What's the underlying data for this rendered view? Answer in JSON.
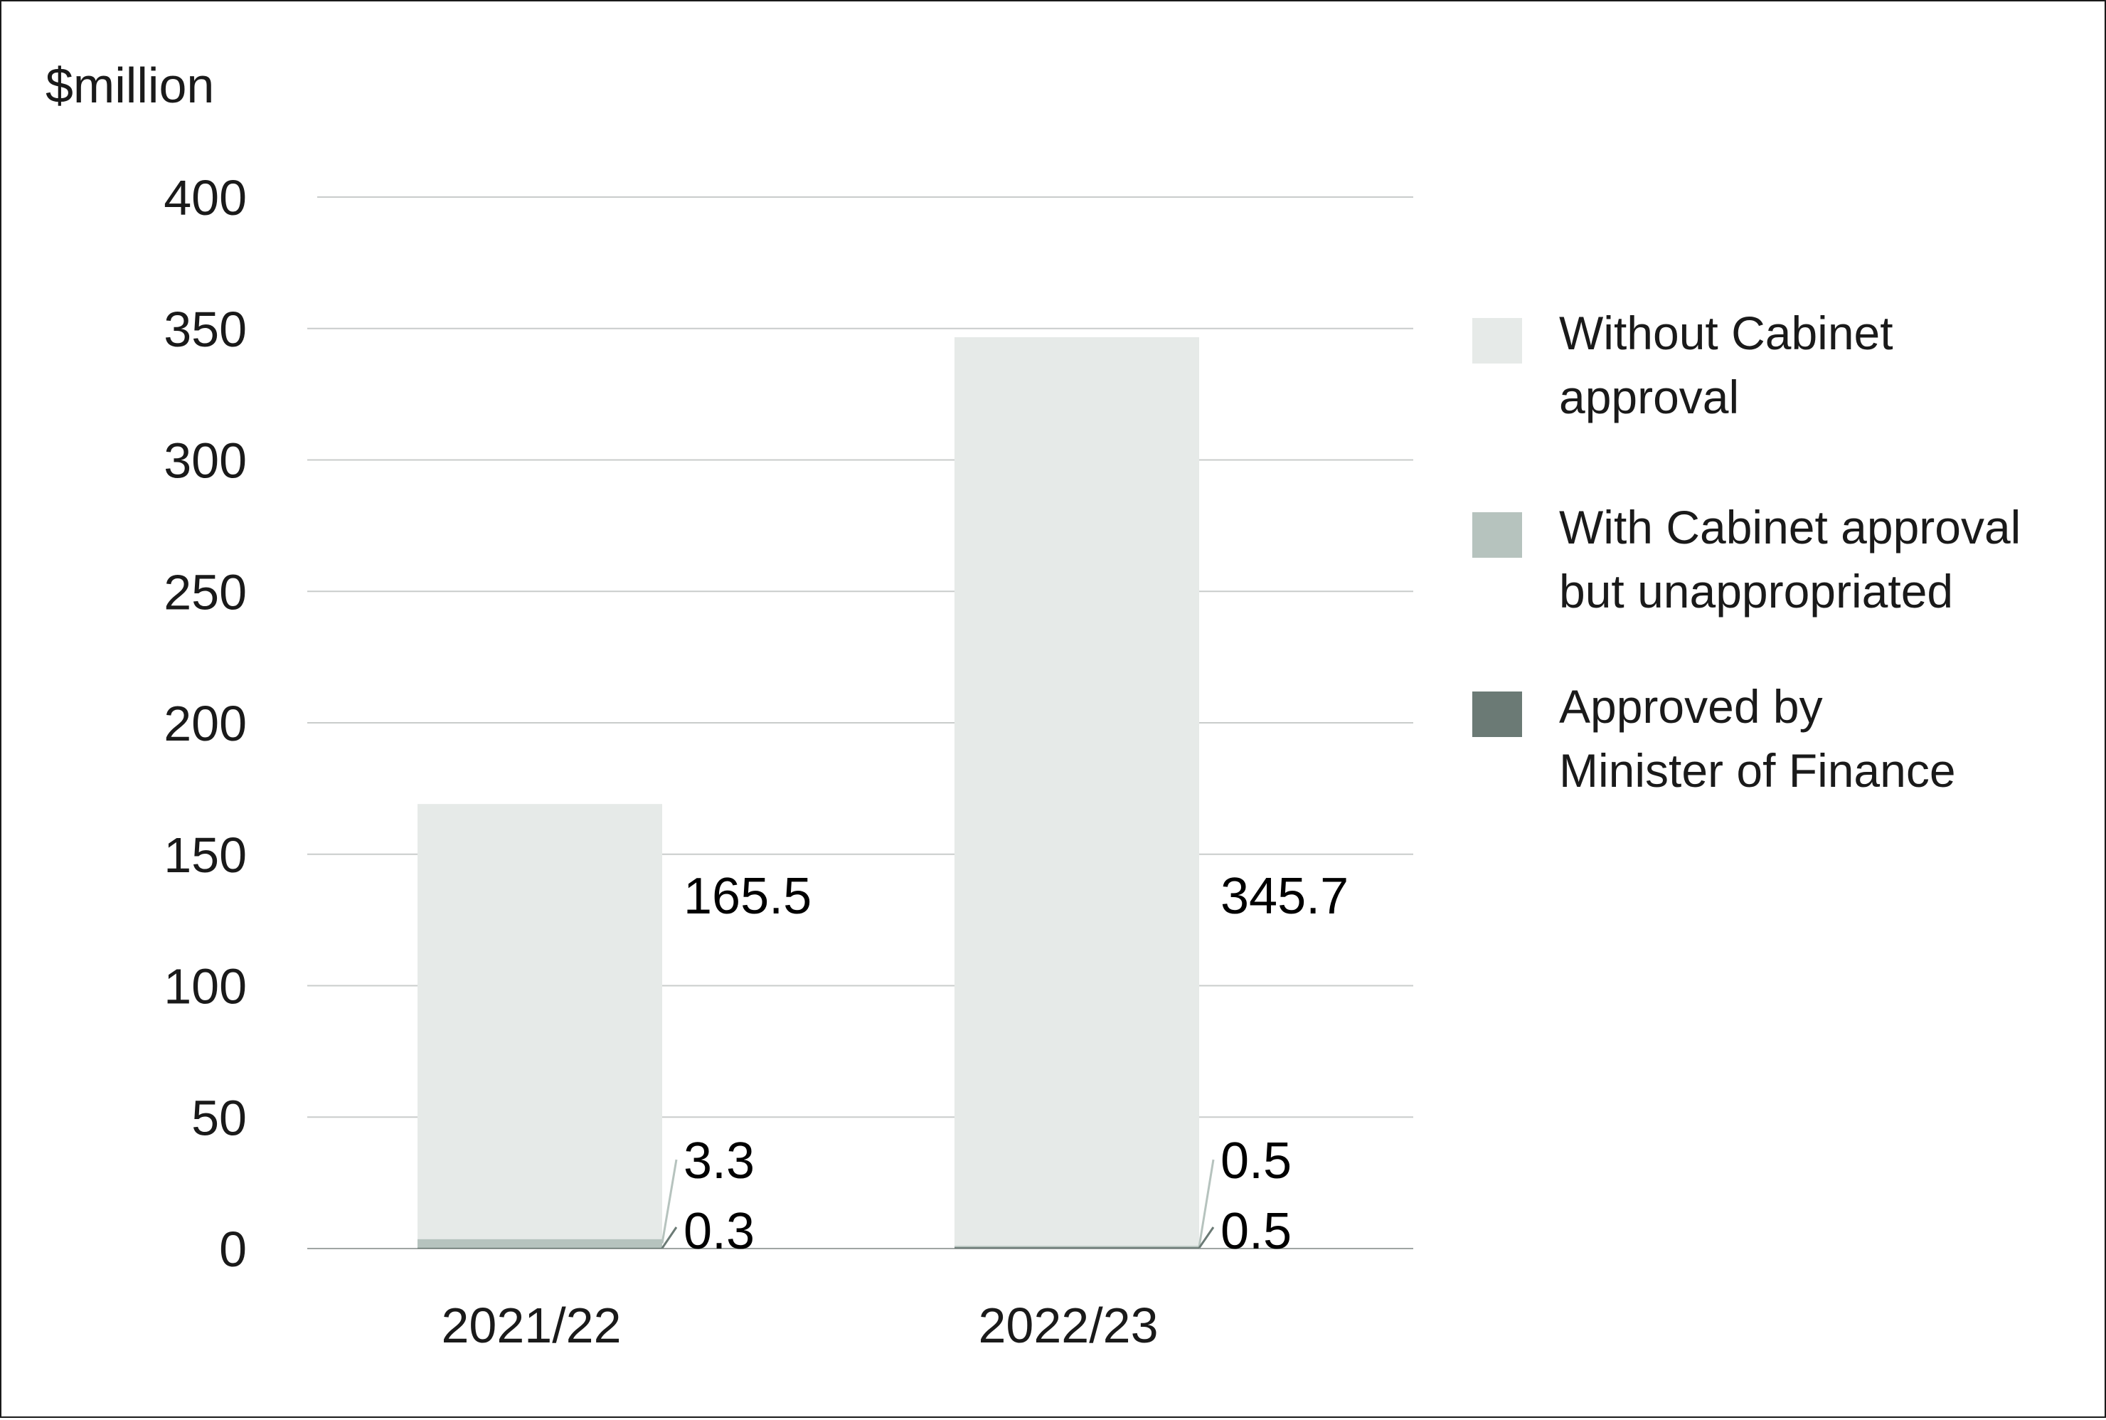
{
  "chart_data": {
    "type": "bar",
    "stacked": true,
    "ylabel": "$million",
    "categories": [
      "2021/22",
      "2022/23"
    ],
    "ylim": [
      0,
      400
    ],
    "yticks": [
      0,
      50,
      100,
      150,
      200,
      250,
      300,
      350,
      400
    ],
    "grid": true,
    "legend_position": "right",
    "series": [
      {
        "name": "Approved by Minister of Finance",
        "values": [
          0.3,
          0.5
        ],
        "labels": [
          "0.3",
          "0.5"
        ],
        "color": "#6b7a75"
      },
      {
        "name": "With Cabinet approval but unappropriated",
        "values": [
          3.3,
          0.5
        ],
        "labels": [
          "3.3",
          "0.5"
        ],
        "color": "#b6c3be"
      },
      {
        "name": "Without Cabinet approval",
        "values": [
          165.5,
          345.7
        ],
        "labels": [
          "165.5",
          "345.7"
        ],
        "color": "#e6eae8"
      }
    ],
    "legend": [
      {
        "lines": [
          "Without Cabinet",
          "approval"
        ],
        "color": "#e6eae8"
      },
      {
        "lines": [
          "With Cabinet approval",
          "but unappropriated"
        ],
        "color": "#b6c3be"
      },
      {
        "lines": [
          "Approved by",
          "Minister of Finance"
        ],
        "color": "#6b7a75"
      }
    ]
  }
}
